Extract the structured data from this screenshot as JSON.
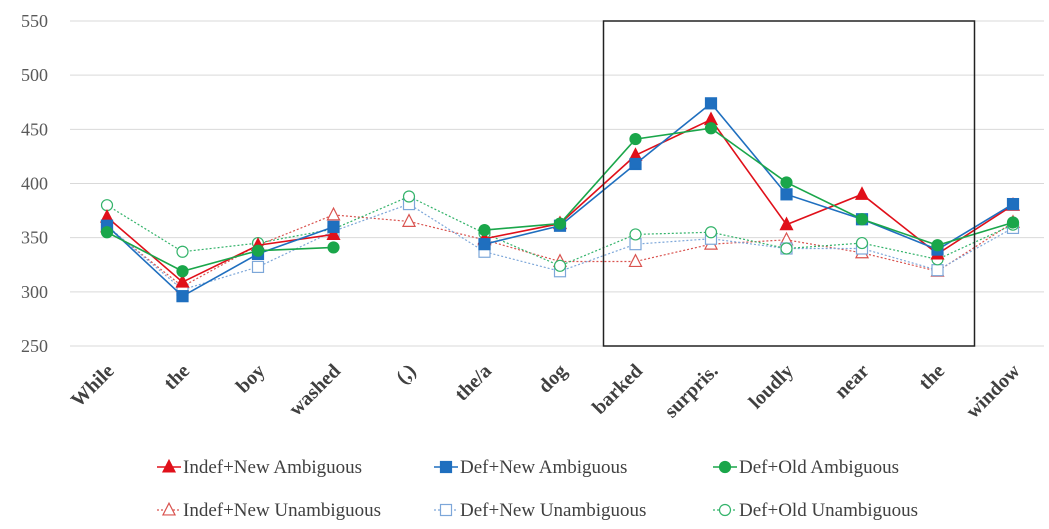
{
  "chart_data": {
    "type": "line",
    "categories": [
      "While",
      "the",
      "boy",
      "washed",
      "(,)",
      "the/a",
      "dog",
      "barked",
      "surpris.",
      "loudly",
      "near",
      "the",
      "window"
    ],
    "ylim": [
      250,
      550
    ],
    "yticks": [
      250,
      300,
      350,
      400,
      450,
      500,
      550
    ],
    "grid": "horizontal",
    "legend_position": "bottom",
    "highlight_box": {
      "from_category": "barked",
      "to_category": "the"
    },
    "series": [
      {
        "name": "Indef+New Ambiguous",
        "color": "#e0101a",
        "marker": "triangle",
        "filled": true,
        "dashed": false,
        "values": [
          369,
          309,
          343,
          353,
          null,
          349,
          363,
          426,
          459,
          362,
          390,
          335,
          380
        ]
      },
      {
        "name": "Def+New Ambiguous",
        "color": "#1f6fbf",
        "marker": "square",
        "filled": true,
        "dashed": false,
        "values": [
          361,
          296,
          335,
          360,
          null,
          344,
          361,
          418,
          474,
          390,
          367,
          339,
          381
        ]
      },
      {
        "name": "Def+Old Ambiguous",
        "color": "#1aa64a",
        "marker": "circle",
        "filled": true,
        "dashed": false,
        "values": [
          355,
          319,
          338,
          341,
          null,
          357,
          363,
          441,
          451,
          401,
          367,
          343,
          364
        ]
      },
      {
        "name": "Indef+New Unambiguous",
        "color": "#d9534f",
        "marker": "triangle",
        "filled": false,
        "dashed": true,
        "values": [
          360,
          305,
          343,
          371,
          365,
          348,
          328,
          328,
          344,
          348,
          336,
          319,
          364
        ]
      },
      {
        "name": "Def+New Unambiguous",
        "color": "#7da7d9",
        "marker": "square",
        "filled": false,
        "dashed": true,
        "values": [
          361,
          302,
          323,
          356,
          381,
          337,
          319,
          344,
          349,
          340,
          340,
          320,
          359
        ]
      },
      {
        "name": "Def+Old Unambiguous",
        "color": "#33b36a",
        "marker": "circle",
        "filled": false,
        "dashed": true,
        "values": [
          380,
          337,
          345,
          358,
          388,
          354,
          324,
          353,
          355,
          340,
          345,
          330,
          362
        ]
      }
    ]
  }
}
